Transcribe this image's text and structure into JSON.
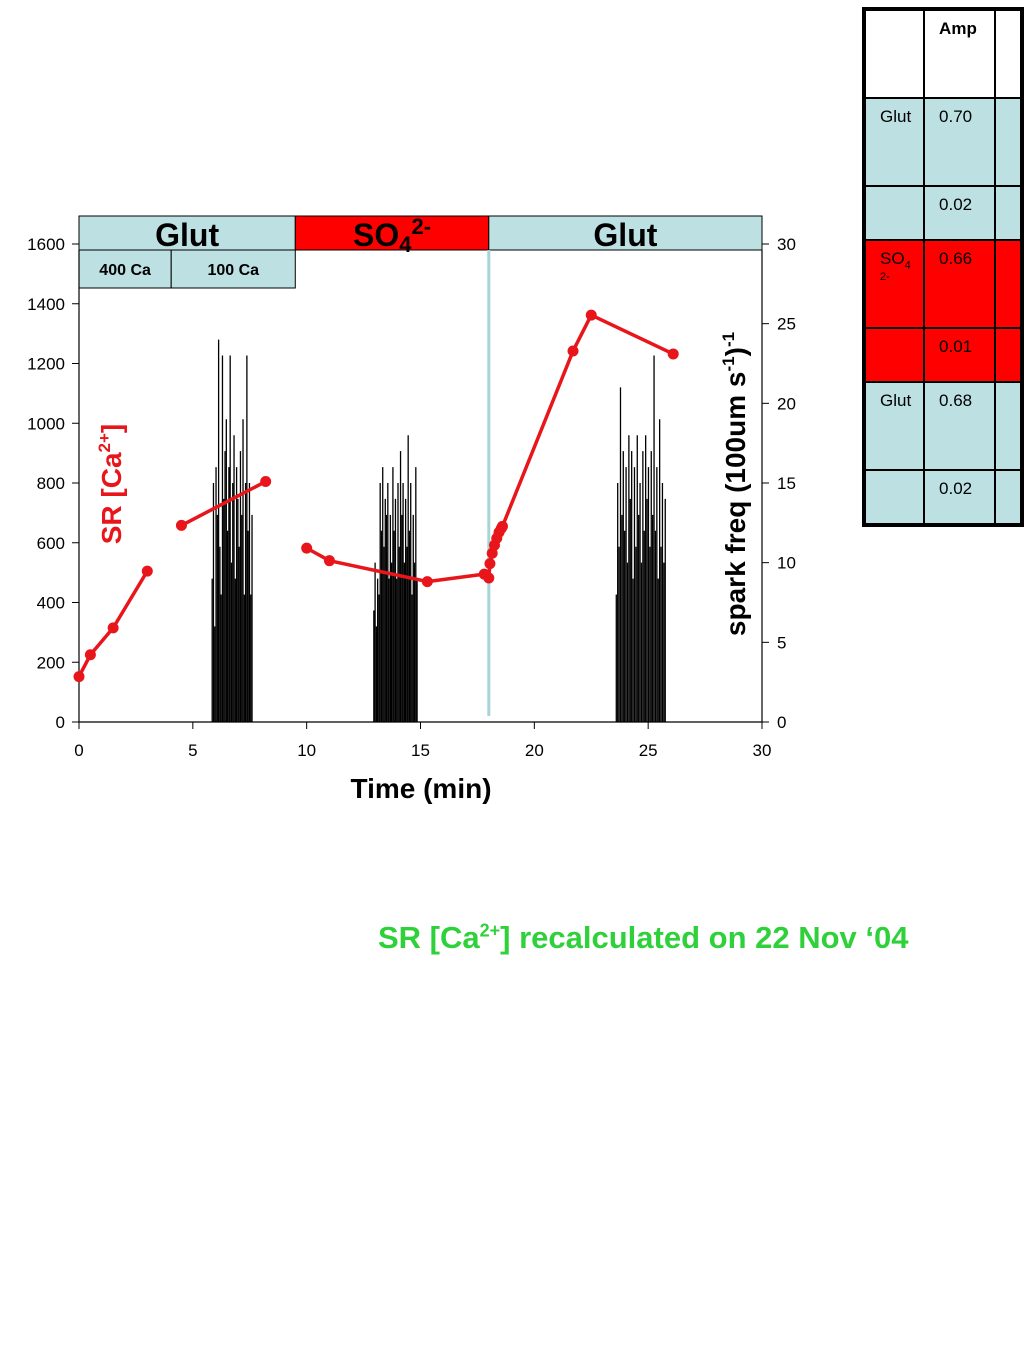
{
  "chart_data": {
    "type": "line",
    "xlabel": "Time (min)",
    "ylabel_left_main": "SR [Ca",
    "ylabel_left_sup": "2+",
    "ylabel_left_end": "]",
    "ylabel_right": "spark freq (100um s",
    "ylabel_right_sup1": "-1",
    "ylabel_right_mid": ")",
    "ylabel_right_sup2": "-1",
    "xlim": [
      0,
      30
    ],
    "ylim_left": [
      0,
      1600
    ],
    "ylim_right": [
      0,
      30
    ],
    "x_ticks": [
      "0",
      "5",
      "10",
      "15",
      "20",
      "25",
      "30"
    ],
    "y_ticks_left": [
      "0",
      "200",
      "400",
      "600",
      "800",
      "1000",
      "1200",
      "1400",
      "1600"
    ],
    "y_ticks_right": [
      "0",
      "5",
      "10",
      "15",
      "20",
      "25",
      "30"
    ],
    "condition_bands": [
      {
        "label": "Glut",
        "start": 0,
        "end": 9.5,
        "color": "#bde0e3"
      },
      {
        "label": "SO",
        "sub": "4",
        "sup": "2-",
        "start": 9.5,
        "end": 18,
        "color": "#ff0000"
      },
      {
        "label": "Glut",
        "start": 18,
        "end": 30,
        "color": "#bde0e3"
      }
    ],
    "sub_bands": [
      {
        "label": "400 Ca",
        "start": 0,
        "end": 4.05
      },
      {
        "label": "100 Ca",
        "start": 4.05,
        "end": 9.5
      }
    ],
    "solution_switch_x": 18,
    "series": [
      {
        "axis": "left",
        "color": "#e8161b",
        "segments": [
          [
            [
              0,
              152
            ],
            [
              0.5,
              225
            ],
            [
              1.5,
              315
            ],
            [
              3.0,
              505
            ]
          ],
          [
            [
              4.5,
              658
            ],
            [
              8.2,
              805
            ]
          ],
          [
            [
              10.0,
              582
            ],
            [
              11.0,
              540
            ],
            [
              15.3,
              470
            ],
            [
              17.8,
              495
            ],
            [
              18.0,
              482
            ],
            [
              18.05,
              530
            ],
            [
              18.15,
              565
            ],
            [
              18.25,
              592
            ],
            [
              18.35,
              615
            ],
            [
              18.45,
              635
            ],
            [
              18.55,
              648
            ],
            [
              18.6,
              655
            ],
            [
              21.7,
              1242
            ],
            [
              22.5,
              1362
            ],
            [
              26.1,
              1232
            ]
          ]
        ]
      }
    ],
    "spark_bursts": [
      {
        "axis": "right",
        "start": 5.85,
        "end": 7.6,
        "peak": 24,
        "heights": [
          9,
          15,
          6,
          16,
          13,
          24,
          11,
          8,
          23,
          14,
          17,
          19,
          12,
          16,
          23,
          10,
          15,
          18,
          9,
          16,
          14,
          11,
          17,
          13,
          19,
          8,
          15,
          23,
          12,
          15,
          8,
          13
        ]
      },
      {
        "axis": "right",
        "start": 12.95,
        "end": 14.85,
        "peak": 18,
        "heights": [
          7,
          10,
          6,
          9,
          8,
          15,
          12,
          16,
          11,
          14,
          13,
          15,
          9,
          13,
          10,
          16,
          12,
          14,
          9,
          15,
          11,
          17,
          13,
          15,
          10,
          14,
          11,
          18,
          12,
          15,
          8,
          13,
          10,
          16,
          9
        ]
      },
      {
        "axis": "right",
        "start": 23.6,
        "end": 25.75,
        "peak": 23,
        "heights": [
          8,
          15,
          11,
          21,
          13,
          17,
          12,
          16,
          10,
          18,
          14,
          17,
          9,
          16,
          11,
          18,
          13,
          15,
          10,
          17,
          12,
          18,
          14,
          16,
          11,
          17,
          13,
          23,
          12,
          16,
          9,
          19,
          11,
          15,
          10,
          14
        ]
      }
    ]
  },
  "table": {
    "header": [
      "",
      "Amp",
      ""
    ],
    "rows": [
      {
        "style": "glut",
        "cells": [
          "Glut",
          "0.70",
          ""
        ]
      },
      {
        "style": "glut-small",
        "cells": [
          "",
          "0.02",
          ""
        ]
      },
      {
        "style": "so4",
        "label_main": "SO",
        "label_sub": "4",
        "label_sup": "2-",
        "cells": [
          "",
          "0.66",
          ""
        ]
      },
      {
        "style": "so4-small",
        "cells": [
          "",
          "0.01",
          ""
        ]
      },
      {
        "style": "glut",
        "cells": [
          "Glut",
          "0.68",
          ""
        ]
      },
      {
        "style": "glut-small",
        "cells": [
          "",
          "0.02",
          ""
        ]
      }
    ]
  },
  "note": {
    "text_before": "SR [Ca",
    "sup": "2+",
    "text_after": "] recalculated on 22 Nov ‘04"
  }
}
